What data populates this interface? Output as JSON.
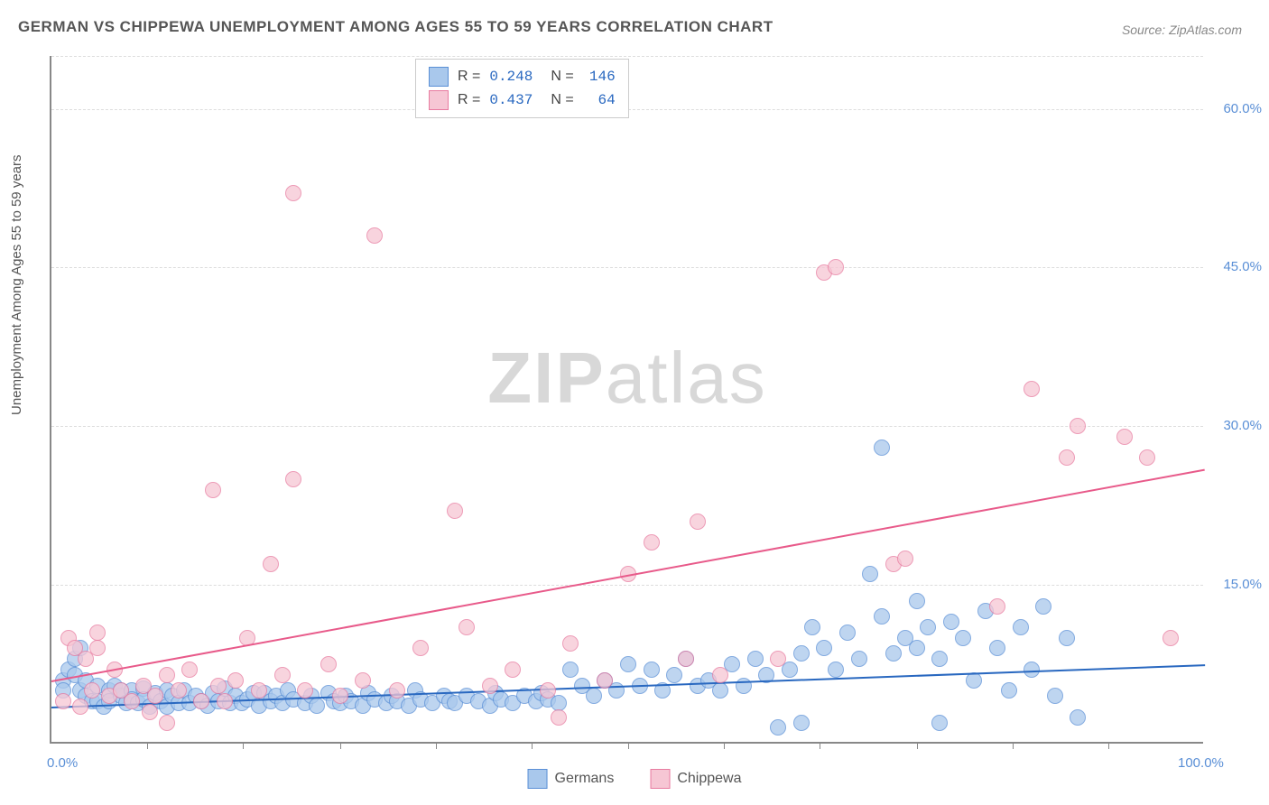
{
  "title": "GERMAN VS CHIPPEWA UNEMPLOYMENT AMONG AGES 55 TO 59 YEARS CORRELATION CHART",
  "source_label": "Source: ZipAtlas.com",
  "y_axis_label": "Unemployment Among Ages 55 to 59 years",
  "watermark_zip": "ZIP",
  "watermark_atlas": "atlas",
  "chart": {
    "type": "scatter",
    "xlim": [
      0,
      100
    ],
    "ylim": [
      0,
      65
    ],
    "x_ticks_minor": [
      8.3,
      16.6,
      25,
      33.3,
      41.6,
      50,
      58.3,
      66.6,
      75,
      83.3,
      91.6
    ],
    "y_gridlines": [
      15,
      30,
      45,
      60,
      65
    ],
    "y_tick_labels": [
      {
        "v": 15,
        "t": "15.0%"
      },
      {
        "v": 30,
        "t": "30.0%"
      },
      {
        "v": 45,
        "t": "45.0%"
      },
      {
        "v": 60,
        "t": "60.0%"
      }
    ],
    "x_tick_labels": [
      {
        "v": 0,
        "t": "0.0%"
      },
      {
        "v": 100,
        "t": "100.0%"
      }
    ],
    "background_color": "#ffffff",
    "grid_color": "#dddddd",
    "axis_color": "#888888",
    "label_color": "#5a8fd6",
    "series": [
      {
        "name": "Germans",
        "legend_label": "Germans",
        "point_fill": "#a9c8ec",
        "point_stroke": "#5a8fd6",
        "point_radius": 9,
        "point_opacity": 0.75,
        "trend": {
          "x1": 0,
          "y1": 3.5,
          "x2": 100,
          "y2": 7.5,
          "color": "#2968c0",
          "width": 2
        },
        "stats": {
          "R_label": "R =",
          "R": "0.248",
          "N_label": "N =",
          "N": "146"
        },
        "points": [
          [
            1,
            6
          ],
          [
            1,
            5
          ],
          [
            1.5,
            7
          ],
          [
            2,
            6.5
          ],
          [
            2,
            8
          ],
          [
            2.5,
            9
          ],
          [
            2.5,
            5
          ],
          [
            3,
            4.5
          ],
          [
            3,
            6
          ],
          [
            3.5,
            4
          ],
          [
            4,
            5.5
          ],
          [
            4,
            4
          ],
          [
            4.5,
            3.5
          ],
          [
            5,
            5
          ],
          [
            5,
            4
          ],
          [
            5.5,
            5.5
          ],
          [
            6,
            4.5
          ],
          [
            6,
            5
          ],
          [
            6.5,
            3.8
          ],
          [
            7,
            5
          ],
          [
            7,
            4.2
          ],
          [
            7.5,
            3.8
          ],
          [
            8,
            5.2
          ],
          [
            8,
            4.2
          ],
          [
            8.5,
            3.5
          ],
          [
            9,
            4.8
          ],
          [
            9.5,
            4
          ],
          [
            10,
            5
          ],
          [
            10,
            3.5
          ],
          [
            10.5,
            4.5
          ],
          [
            11,
            3.8
          ],
          [
            11.5,
            5
          ],
          [
            12,
            3.8
          ],
          [
            12.5,
            4.5
          ],
          [
            13,
            4
          ],
          [
            13.5,
            3.6
          ],
          [
            14,
            4.8
          ],
          [
            14.5,
            4
          ],
          [
            15,
            5.2
          ],
          [
            15.5,
            3.8
          ],
          [
            16,
            4.5
          ],
          [
            16.5,
            3.8
          ],
          [
            17,
            4.2
          ],
          [
            17.5,
            4.8
          ],
          [
            18,
            3.6
          ],
          [
            18.5,
            4.8
          ],
          [
            19,
            4
          ],
          [
            19.5,
            4.5
          ],
          [
            20,
            3.8
          ],
          [
            20.5,
            5
          ],
          [
            21,
            4.2
          ],
          [
            22,
            3.8
          ],
          [
            22.5,
            4.5
          ],
          [
            23,
            3.6
          ],
          [
            24,
            4.8
          ],
          [
            24.5,
            4
          ],
          [
            25,
            3.8
          ],
          [
            25.5,
            4.5
          ],
          [
            26,
            4
          ],
          [
            27,
            3.6
          ],
          [
            27.5,
            4.8
          ],
          [
            28,
            4.2
          ],
          [
            29,
            3.8
          ],
          [
            29.5,
            4.5
          ],
          [
            30,
            4
          ],
          [
            31,
            3.6
          ],
          [
            31.5,
            5
          ],
          [
            32,
            4.2
          ],
          [
            33,
            3.8
          ],
          [
            34,
            4.5
          ],
          [
            34.5,
            4
          ],
          [
            35,
            3.8
          ],
          [
            36,
            4.5
          ],
          [
            37,
            4
          ],
          [
            38,
            3.6
          ],
          [
            38.5,
            4.8
          ],
          [
            39,
            4.2
          ],
          [
            40,
            3.8
          ],
          [
            41,
            4.5
          ],
          [
            42,
            4
          ],
          [
            42.5,
            4.8
          ],
          [
            43,
            4.2
          ],
          [
            44,
            3.8
          ],
          [
            45,
            7
          ],
          [
            46,
            5.5
          ],
          [
            47,
            4.5
          ],
          [
            48,
            6
          ],
          [
            49,
            5
          ],
          [
            50,
            7.5
          ],
          [
            51,
            5.5
          ],
          [
            52,
            7
          ],
          [
            53,
            5
          ],
          [
            54,
            6.5
          ],
          [
            55,
            8
          ],
          [
            56,
            5.5
          ],
          [
            57,
            6
          ],
          [
            58,
            5
          ],
          [
            59,
            7.5
          ],
          [
            60,
            5.5
          ],
          [
            61,
            8
          ],
          [
            62,
            6.5
          ],
          [
            63,
            1.5
          ],
          [
            64,
            7
          ],
          [
            65,
            8.5
          ],
          [
            65,
            2
          ],
          [
            66,
            11
          ],
          [
            67,
            9
          ],
          [
            68,
            7
          ],
          [
            69,
            10.5
          ],
          [
            70,
            8
          ],
          [
            71,
            16
          ],
          [
            72,
            12
          ],
          [
            73,
            8.5
          ],
          [
            74,
            10
          ],
          [
            75,
            13.5
          ],
          [
            75,
            9
          ],
          [
            76,
            11
          ],
          [
            77,
            8
          ],
          [
            77,
            2
          ],
          [
            78,
            11.5
          ],
          [
            79,
            10
          ],
          [
            80,
            6
          ],
          [
            81,
            12.5
          ],
          [
            82,
            9
          ],
          [
            83,
            5
          ],
          [
            84,
            11
          ],
          [
            85,
            7
          ],
          [
            86,
            13
          ],
          [
            87,
            4.5
          ],
          [
            88,
            10
          ],
          [
            72,
            28
          ],
          [
            89,
            2.5
          ]
        ]
      },
      {
        "name": "Chippewa",
        "legend_label": "Chippewa",
        "point_fill": "#f6c6d4",
        "point_stroke": "#e87ba0",
        "point_radius": 9,
        "point_opacity": 0.75,
        "trend": {
          "x1": 0,
          "y1": 6,
          "x2": 100,
          "y2": 26,
          "color": "#e85a8a",
          "width": 2
        },
        "stats": {
          "R_label": "R =",
          "R": "0.437",
          "N_label": "N =",
          "N": "64"
        },
        "points": [
          [
            1,
            4
          ],
          [
            1.5,
            10
          ],
          [
            2,
            9
          ],
          [
            2.5,
            3.5
          ],
          [
            3,
            8
          ],
          [
            3.5,
            5
          ],
          [
            4,
            10.5
          ],
          [
            4,
            9
          ],
          [
            5,
            4.5
          ],
          [
            5.5,
            7
          ],
          [
            6,
            5
          ],
          [
            7,
            4
          ],
          [
            8,
            5.5
          ],
          [
            8.5,
            3
          ],
          [
            9,
            4.5
          ],
          [
            10,
            6.5
          ],
          [
            10,
            2
          ],
          [
            11,
            5
          ],
          [
            12,
            7
          ],
          [
            13,
            4
          ],
          [
            14,
            24
          ],
          [
            14.5,
            5.5
          ],
          [
            15,
            4
          ],
          [
            16,
            6
          ],
          [
            17,
            10
          ],
          [
            18,
            5
          ],
          [
            19,
            17
          ],
          [
            20,
            6.5
          ],
          [
            21,
            25
          ],
          [
            22,
            5
          ],
          [
            21,
            52
          ],
          [
            24,
            7.5
          ],
          [
            25,
            4.5
          ],
          [
            27,
            6
          ],
          [
            28,
            48
          ],
          [
            30,
            5
          ],
          [
            32,
            9
          ],
          [
            35,
            22
          ],
          [
            36,
            11
          ],
          [
            38,
            5.5
          ],
          [
            40,
            7
          ],
          [
            43,
            5
          ],
          [
            44,
            2.5
          ],
          [
            45,
            9.5
          ],
          [
            48,
            6
          ],
          [
            50,
            16
          ],
          [
            52,
            19
          ],
          [
            55,
            8
          ],
          [
            56,
            21
          ],
          [
            58,
            6.5
          ],
          [
            63,
            8
          ],
          [
            67,
            44.5
          ],
          [
            68,
            45
          ],
          [
            73,
            17
          ],
          [
            74,
            17.5
          ],
          [
            82,
            13
          ],
          [
            85,
            33.5
          ],
          [
            88,
            27
          ],
          [
            89,
            30
          ],
          [
            93,
            29
          ],
          [
            95,
            27
          ],
          [
            97,
            10
          ]
        ]
      }
    ]
  },
  "bottom_legend": [
    {
      "label": "Germans",
      "fill": "#a9c8ec",
      "stroke": "#5a8fd6"
    },
    {
      "label": "Chippewa",
      "fill": "#f6c6d4",
      "stroke": "#e87ba0"
    }
  ]
}
